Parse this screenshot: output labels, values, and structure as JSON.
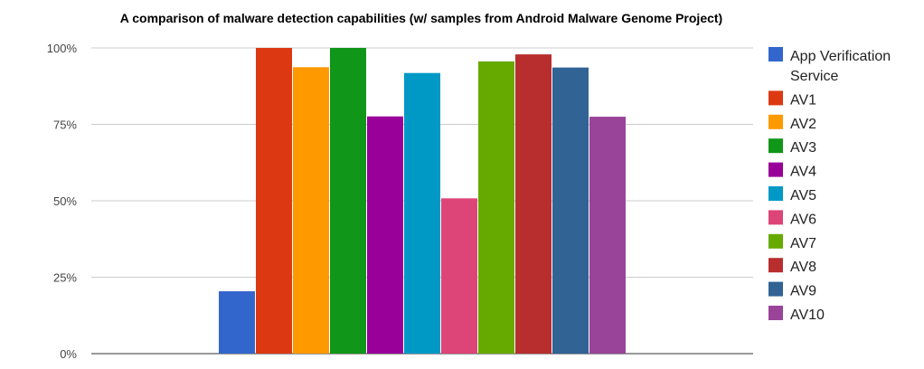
{
  "chart_data": {
    "type": "bar",
    "title": "A comparison of malware detection capabilities (w/ samples from Android Malware Genome Project)",
    "xlabel": "",
    "ylabel": "",
    "ylim": [
      0,
      100
    ],
    "yticks": [
      "0%",
      "25%",
      "50%",
      "75%",
      "100%"
    ],
    "grid": true,
    "legend_position": "right",
    "categories": [
      ""
    ],
    "series": [
      {
        "name": "App Verification Service",
        "legend_lines": [
          "App Verification",
          "Service"
        ],
        "values": [
          20.4
        ],
        "color": "#3366cc"
      },
      {
        "name": "AV1",
        "values": [
          100
        ],
        "color": "#dc3912"
      },
      {
        "name": "AV2",
        "values": [
          93.7
        ],
        "color": "#ff9900"
      },
      {
        "name": "AV3",
        "values": [
          100
        ],
        "color": "#109618"
      },
      {
        "name": "AV4",
        "values": [
          77.6
        ],
        "color": "#990099"
      },
      {
        "name": "AV5",
        "values": [
          91.8
        ],
        "color": "#0099c6"
      },
      {
        "name": "AV6",
        "values": [
          50.8
        ],
        "color": "#dd4477"
      },
      {
        "name": "AV7",
        "values": [
          95.6
        ],
        "color": "#66aa00"
      },
      {
        "name": "AV8",
        "values": [
          97.9
        ],
        "color": "#b82e2e"
      },
      {
        "name": "AV9",
        "values": [
          93.6
        ],
        "color": "#316395"
      },
      {
        "name": "AV10",
        "values": [
          77.5
        ],
        "color": "#994499"
      }
    ]
  }
}
